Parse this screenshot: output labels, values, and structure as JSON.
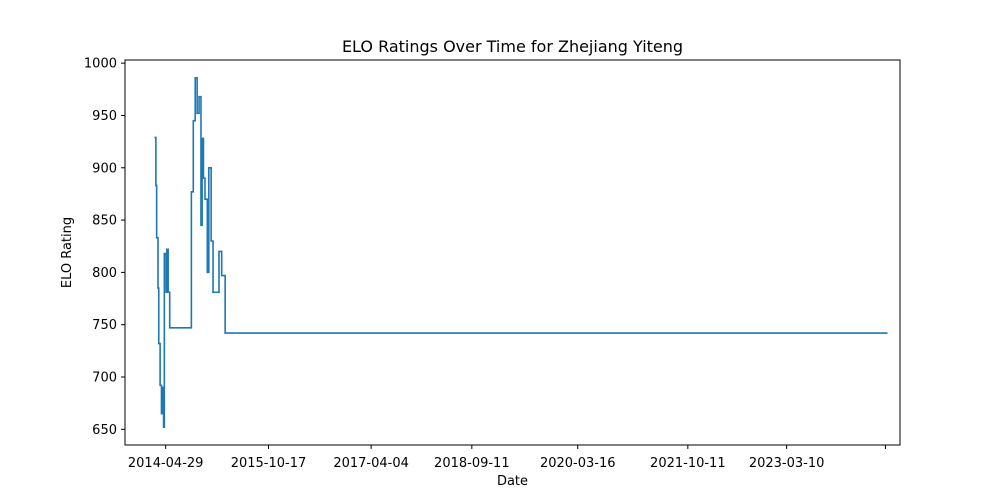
{
  "chart_data": {
    "type": "line",
    "title": "ELO Ratings Over Time for Zhejiang Yiteng",
    "xlabel": "Date",
    "ylabel": "ELO Rating",
    "x_tick_labels": [
      "2014-04-29",
      "2015-10-17",
      "2017-04-04",
      "2018-09-11",
      "2020-03-16",
      "2021-10-11",
      "2023-03-10"
    ],
    "y_tick_labels": [
      "650",
      "700",
      "750",
      "800",
      "850",
      "900",
      "950",
      "1000"
    ],
    "xlim": [
      "2013-09-29",
      "2024-10-21"
    ],
    "ylim": [
      635,
      1003
    ],
    "grid": false,
    "line_color": "#1f77b4",
    "series": [
      {
        "points": [
          [
            "2014-03-02",
            929
          ],
          [
            "2014-03-09",
            929
          ],
          [
            "2014-03-09",
            883
          ],
          [
            "2014-03-13",
            883
          ],
          [
            "2014-03-13",
            833
          ],
          [
            "2014-03-20",
            833
          ],
          [
            "2014-03-20",
            785
          ],
          [
            "2014-03-24",
            785
          ],
          [
            "2014-03-24",
            732
          ],
          [
            "2014-03-31",
            732
          ],
          [
            "2014-03-31",
            692
          ],
          [
            "2014-04-07",
            692
          ],
          [
            "2014-04-07",
            665
          ],
          [
            "2014-04-14",
            665
          ],
          [
            "2014-04-14",
            690
          ],
          [
            "2014-04-18",
            690
          ],
          [
            "2014-04-18",
            652
          ],
          [
            "2014-04-22",
            652
          ],
          [
            "2014-04-22",
            818
          ],
          [
            "2014-05-01",
            818
          ],
          [
            "2014-05-01",
            781
          ],
          [
            "2014-05-05",
            781
          ],
          [
            "2014-05-05",
            822
          ],
          [
            "2014-05-12",
            822
          ],
          [
            "2014-05-12",
            781
          ],
          [
            "2014-05-20",
            781
          ],
          [
            "2014-05-20",
            747
          ],
          [
            "2014-09-10",
            747
          ],
          [
            "2014-09-10",
            877
          ],
          [
            "2014-09-20",
            877
          ],
          [
            "2014-09-20",
            945
          ],
          [
            "2014-09-30",
            945
          ],
          [
            "2014-09-30",
            986
          ],
          [
            "2014-10-10",
            986
          ],
          [
            "2014-10-10",
            952
          ],
          [
            "2014-10-20",
            952
          ],
          [
            "2014-10-20",
            968
          ],
          [
            "2014-10-30",
            968
          ],
          [
            "2014-10-30",
            845
          ],
          [
            "2014-11-05",
            845
          ],
          [
            "2014-11-05",
            928
          ],
          [
            "2014-11-12",
            928
          ],
          [
            "2014-11-12",
            890
          ],
          [
            "2014-11-20",
            890
          ],
          [
            "2014-11-20",
            870
          ],
          [
            "2014-12-02",
            870
          ],
          [
            "2014-12-02",
            800
          ],
          [
            "2014-12-10",
            800
          ],
          [
            "2014-12-10",
            900
          ],
          [
            "2014-12-22",
            900
          ],
          [
            "2014-12-22",
            830
          ],
          [
            "2015-01-01",
            830
          ],
          [
            "2015-01-01",
            781
          ],
          [
            "2015-02-01",
            781
          ],
          [
            "2015-02-01",
            820
          ],
          [
            "2015-02-15",
            820
          ],
          [
            "2015-02-15",
            797
          ],
          [
            "2015-03-05",
            797
          ],
          [
            "2015-03-05",
            742
          ],
          [
            "2024-08-17",
            742
          ]
        ]
      }
    ]
  }
}
